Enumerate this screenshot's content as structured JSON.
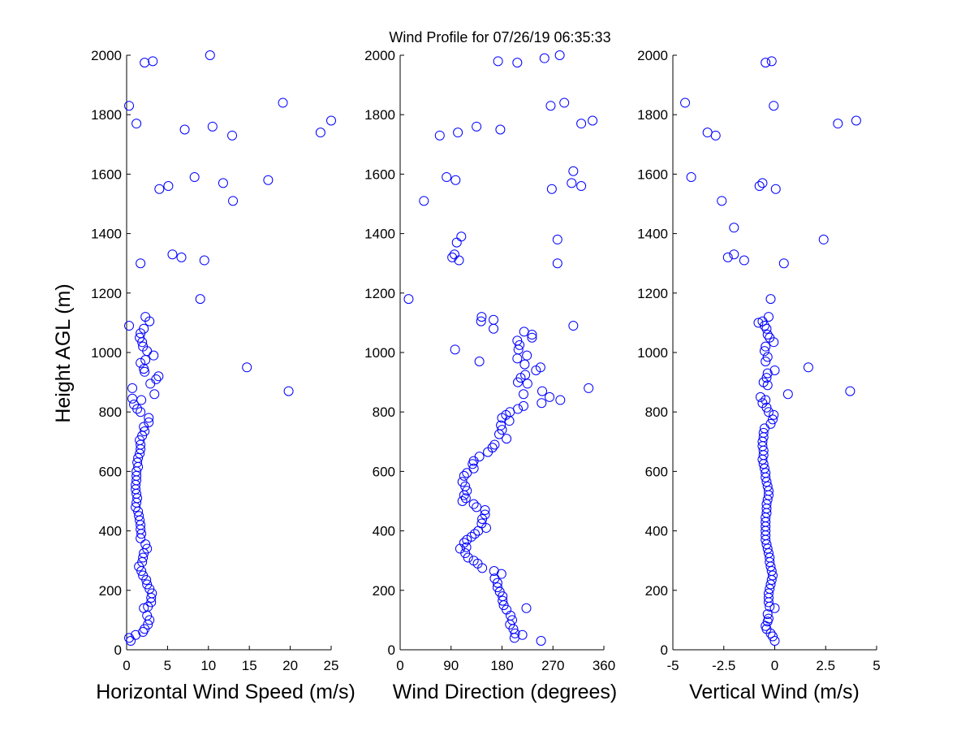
{
  "title": "Wind Profile for  07/26/19 06:35:33",
  "ylabel": "Height AGL (m)",
  "colors": {
    "marker": "#0000ff",
    "axis": "#000000",
    "background": "#ffffff"
  },
  "chart_data": [
    {
      "type": "scatter",
      "title": "Wind Profile for  07/26/19 06:35:33",
      "xlabel": "Horizontal Wind Speed (m/s)",
      "ylabel": "Height AGL (m)",
      "xlim": [
        0,
        25
      ],
      "ylim": [
        0,
        2000
      ],
      "xticks": [
        0,
        5,
        10,
        15,
        20,
        25
      ],
      "xtick_labels": [
        "0",
        "5",
        "10",
        "15",
        "20",
        "25"
      ],
      "yticks": [
        0,
        200,
        400,
        600,
        800,
        1000,
        1200,
        1400,
        1600,
        1800,
        2000
      ],
      "ytick_labels": [
        "0",
        "200",
        "400",
        "600",
        "800",
        "1000",
        "1200",
        "1400",
        "1600",
        "1800",
        "2000"
      ],
      "points": [
        [
          10.2,
          2000
        ],
        [
          3.2,
          1980
        ],
        [
          2.2,
          1975
        ],
        [
          0.3,
          1830
        ],
        [
          1.2,
          1770
        ],
        [
          19.1,
          1840
        ],
        [
          25,
          1780
        ],
        [
          23.7,
          1740
        ],
        [
          10.5,
          1760
        ],
        [
          7.1,
          1750
        ],
        [
          12.9,
          1730
        ],
        [
          8.3,
          1590
        ],
        [
          11.8,
          1570
        ],
        [
          17.3,
          1580
        ],
        [
          5.1,
          1560
        ],
        [
          4.0,
          1550
        ],
        [
          13.0,
          1510
        ],
        [
          5.6,
          1330
        ],
        [
          6.7,
          1320
        ],
        [
          9.5,
          1310
        ],
        [
          1.7,
          1300
        ],
        [
          9.0,
          1180
        ],
        [
          2.3,
          1120
        ],
        [
          2.8,
          1105
        ],
        [
          0.3,
          1090
        ],
        [
          2.1,
          1080
        ],
        [
          1.7,
          1065
        ],
        [
          1.6,
          1050
        ],
        [
          1.9,
          1035
        ],
        [
          2.0,
          1020
        ],
        [
          2.5,
          1005
        ],
        [
          3.3,
          990
        ],
        [
          2.3,
          975
        ],
        [
          1.7,
          965
        ],
        [
          2.1,
          945
        ],
        [
          2.2,
          935
        ],
        [
          14.7,
          950
        ],
        [
          3.9,
          920
        ],
        [
          3.6,
          910
        ],
        [
          2.9,
          895
        ],
        [
          0.7,
          880
        ],
        [
          19.8,
          870
        ],
        [
          3.4,
          860
        ],
        [
          0.7,
          845
        ],
        [
          1.8,
          840
        ],
        [
          0.9,
          825
        ],
        [
          1.3,
          810
        ],
        [
          1.7,
          800
        ],
        [
          2.7,
          780
        ],
        [
          2.7,
          765
        ],
        [
          2.1,
          750
        ],
        [
          2.2,
          735
        ],
        [
          1.9,
          720
        ],
        [
          1.6,
          705
        ],
        [
          1.7,
          690
        ],
        [
          1.7,
          675
        ],
        [
          1.6,
          660
        ],
        [
          1.4,
          645
        ],
        [
          1.3,
          630
        ],
        [
          1.4,
          615
        ],
        [
          1.2,
          600
        ],
        [
          1.2,
          585
        ],
        [
          1.2,
          570
        ],
        [
          1.1,
          555
        ],
        [
          1.1,
          540
        ],
        [
          1.2,
          525
        ],
        [
          1.3,
          510
        ],
        [
          1.2,
          495
        ],
        [
          1.1,
          480
        ],
        [
          1.4,
          465
        ],
        [
          1.5,
          450
        ],
        [
          1.6,
          435
        ],
        [
          1.7,
          420
        ],
        [
          1.7,
          405
        ],
        [
          1.8,
          390
        ],
        [
          1.7,
          375
        ],
        [
          2.3,
          355
        ],
        [
          2.5,
          340
        ],
        [
          2.1,
          325
        ],
        [
          2.0,
          310
        ],
        [
          1.9,
          295
        ],
        [
          1.5,
          280
        ],
        [
          1.8,
          265
        ],
        [
          2.0,
          250
        ],
        [
          2.4,
          235
        ],
        [
          2.5,
          220
        ],
        [
          2.8,
          205
        ],
        [
          3.1,
          190
        ],
        [
          3.0,
          175
        ],
        [
          3.0,
          160
        ],
        [
          2.6,
          145
        ],
        [
          2.1,
          140
        ],
        [
          2.5,
          115
        ],
        [
          2.8,
          100
        ],
        [
          2.6,
          85
        ],
        [
          2.2,
          70
        ],
        [
          2.0,
          60
        ],
        [
          1.1,
          50
        ],
        [
          0.3,
          40
        ],
        [
          0.5,
          30
        ]
      ]
    },
    {
      "type": "scatter",
      "title": "",
      "xlabel": "Wind Direction (degrees)",
      "ylabel": "",
      "xlim": [
        0,
        360
      ],
      "ylim": [
        0,
        2000
      ],
      "xticks": [
        0,
        90,
        180,
        270,
        360
      ],
      "xtick_labels": [
        "0",
        "90",
        "180",
        "270",
        "360"
      ],
      "yticks": [
        0,
        200,
        400,
        600,
        800,
        1000,
        1200,
        1400,
        1600,
        1800,
        2000
      ],
      "ytick_labels": [
        "0",
        "200",
        "400",
        "600",
        "800",
        "1000",
        "1200",
        "1400",
        "1600",
        "1800",
        "2000"
      ],
      "points": [
        [
          282,
          2000
        ],
        [
          255,
          1990
        ],
        [
          173,
          1980
        ],
        [
          207,
          1975
        ],
        [
          266,
          1830
        ],
        [
          290,
          1840
        ],
        [
          340,
          1780
        ],
        [
          320,
          1770
        ],
        [
          135,
          1760
        ],
        [
          177,
          1750
        ],
        [
          102,
          1740
        ],
        [
          70,
          1730
        ],
        [
          306,
          1610
        ],
        [
          82,
          1590
        ],
        [
          98,
          1580
        ],
        [
          303,
          1570
        ],
        [
          320,
          1560
        ],
        [
          268,
          1550
        ],
        [
          42,
          1510
        ],
        [
          108,
          1390
        ],
        [
          278,
          1380
        ],
        [
          100,
          1370
        ],
        [
          96,
          1330
        ],
        [
          92,
          1320
        ],
        [
          104,
          1310
        ],
        [
          278,
          1300
        ],
        [
          15,
          1180
        ],
        [
          144,
          1120
        ],
        [
          143,
          1105
        ],
        [
          165,
          1110
        ],
        [
          306,
          1090
        ],
        [
          165,
          1080
        ],
        [
          219,
          1070
        ],
        [
          233,
          1060
        ],
        [
          233,
          1050
        ],
        [
          207,
          1040
        ],
        [
          211,
          1025
        ],
        [
          209,
          1010
        ],
        [
          97,
          1010
        ],
        [
          224,
          990
        ],
        [
          207,
          980
        ],
        [
          140,
          970
        ],
        [
          220,
          960
        ],
        [
          248,
          950
        ],
        [
          240,
          940
        ],
        [
          221,
          925
        ],
        [
          213,
          915
        ],
        [
          208,
          900
        ],
        [
          225,
          895
        ],
        [
          333,
          880
        ],
        [
          251,
          870
        ],
        [
          218,
          860
        ],
        [
          264,
          850
        ],
        [
          283,
          840
        ],
        [
          250,
          830
        ],
        [
          218,
          820
        ],
        [
          208,
          810
        ],
        [
          194,
          800
        ],
        [
          187,
          790
        ],
        [
          180,
          780
        ],
        [
          193,
          770
        ],
        [
          178,
          755
        ],
        [
          180,
          740
        ],
        [
          175,
          725
        ],
        [
          188,
          710
        ],
        [
          167,
          690
        ],
        [
          163,
          680
        ],
        [
          155,
          665
        ],
        [
          140,
          650
        ],
        [
          130,
          635
        ],
        [
          128,
          625
        ],
        [
          130,
          610
        ],
        [
          118,
          595
        ],
        [
          113,
          585
        ],
        [
          110,
          565
        ],
        [
          115,
          550
        ],
        [
          118,
          535
        ],
        [
          113,
          520
        ],
        [
          116,
          510
        ],
        [
          110,
          500
        ],
        [
          130,
          490
        ],
        [
          135,
          480
        ],
        [
          150,
          470
        ],
        [
          150,
          455
        ],
        [
          145,
          440
        ],
        [
          144,
          425
        ],
        [
          152,
          410
        ],
        [
          138,
          400
        ],
        [
          132,
          390
        ],
        [
          126,
          380
        ],
        [
          118,
          370
        ],
        [
          113,
          360
        ],
        [
          117,
          345
        ],
        [
          106,
          340
        ],
        [
          115,
          325
        ],
        [
          120,
          310
        ],
        [
          130,
          300
        ],
        [
          137,
          290
        ],
        [
          145,
          275
        ],
        [
          166,
          265
        ],
        [
          179,
          255
        ],
        [
          167,
          240
        ],
        [
          172,
          225
        ],
        [
          172,
          210
        ],
        [
          176,
          195
        ],
        [
          181,
          180
        ],
        [
          181,
          165
        ],
        [
          183,
          150
        ],
        [
          188,
          135
        ],
        [
          223,
          140
        ],
        [
          195,
          115
        ],
        [
          198,
          100
        ],
        [
          194,
          85
        ],
        [
          200,
          70
        ],
        [
          203,
          55
        ],
        [
          216,
          50
        ],
        [
          202,
          40
        ],
        [
          249,
          30
        ]
      ]
    },
    {
      "type": "scatter",
      "title": "",
      "xlabel": "Vertical Wind (m/s)",
      "ylabel": "",
      "xlim": [
        -5,
        5
      ],
      "ylim": [
        0,
        2000
      ],
      "xticks": [
        -5,
        -2.5,
        0,
        2.5,
        5
      ],
      "xtick_labels": [
        "-5",
        "-2.5",
        "0",
        "2.5",
        "5"
      ],
      "yticks": [
        0,
        200,
        400,
        600,
        800,
        1000,
        1200,
        1400,
        1600,
        1800,
        2000
      ],
      "ytick_labels": [
        "0",
        "200",
        "400",
        "600",
        "800",
        "1000",
        "1200",
        "1400",
        "1600",
        "1800",
        "2000"
      ],
      "points": [
        [
          -0.15,
          1980
        ],
        [
          -0.45,
          1975
        ],
        [
          -4.4,
          1840
        ],
        [
          -0.05,
          1830
        ],
        [
          4.0,
          1780
        ],
        [
          3.1,
          1770
        ],
        [
          -3.3,
          1740
        ],
        [
          -2.9,
          1730
        ],
        [
          -4.1,
          1590
        ],
        [
          -0.6,
          1570
        ],
        [
          -0.75,
          1560
        ],
        [
          0.05,
          1550
        ],
        [
          -2.6,
          1510
        ],
        [
          -2.0,
          1420
        ],
        [
          2.4,
          1380
        ],
        [
          -2.3,
          1320
        ],
        [
          -2.0,
          1330
        ],
        [
          -1.5,
          1310
        ],
        [
          0.45,
          1300
        ],
        [
          -0.2,
          1180
        ],
        [
          -0.3,
          1120
        ],
        [
          -0.8,
          1100
        ],
        [
          -0.6,
          1105
        ],
        [
          -0.5,
          1090
        ],
        [
          -0.4,
          1080
        ],
        [
          -0.35,
          1060
        ],
        [
          -0.25,
          1050
        ],
        [
          -0.05,
          1035
        ],
        [
          -0.45,
          1020
        ],
        [
          -0.5,
          1005
        ],
        [
          -0.35,
          985
        ],
        [
          -0.45,
          970
        ],
        [
          0.0,
          940
        ],
        [
          -0.35,
          930
        ],
        [
          -0.4,
          915
        ],
        [
          -0.55,
          900
        ],
        [
          -0.35,
          890
        ],
        [
          3.7,
          870
        ],
        [
          1.65,
          950
        ],
        [
          0.65,
          860
        ],
        [
          -0.7,
          850
        ],
        [
          -0.45,
          840
        ],
        [
          -0.6,
          830
        ],
        [
          -0.4,
          815
        ],
        [
          -0.3,
          800
        ],
        [
          -0.05,
          790
        ],
        [
          -0.1,
          775
        ],
        [
          -0.2,
          760
        ],
        [
          -0.5,
          745
        ],
        [
          -0.55,
          730
        ],
        [
          -0.55,
          715
        ],
        [
          -0.6,
          700
        ],
        [
          -0.6,
          685
        ],
        [
          -0.55,
          670
        ],
        [
          -0.55,
          655
        ],
        [
          -0.6,
          640
        ],
        [
          -0.55,
          625
        ],
        [
          -0.5,
          610
        ],
        [
          -0.45,
          595
        ],
        [
          -0.45,
          580
        ],
        [
          -0.4,
          565
        ],
        [
          -0.35,
          550
        ],
        [
          -0.3,
          535
        ],
        [
          -0.3,
          520
        ],
        [
          -0.35,
          505
        ],
        [
          -0.4,
          490
        ],
        [
          -0.4,
          475
        ],
        [
          -0.4,
          460
        ],
        [
          -0.45,
          445
        ],
        [
          -0.45,
          430
        ],
        [
          -0.45,
          415
        ],
        [
          -0.45,
          400
        ],
        [
          -0.45,
          385
        ],
        [
          -0.45,
          370
        ],
        [
          -0.4,
          355
        ],
        [
          -0.35,
          340
        ],
        [
          -0.3,
          325
        ],
        [
          -0.25,
          310
        ],
        [
          -0.25,
          295
        ],
        [
          -0.2,
          280
        ],
        [
          -0.15,
          265
        ],
        [
          -0.1,
          250
        ],
        [
          -0.15,
          235
        ],
        [
          -0.2,
          220
        ],
        [
          -0.25,
          205
        ],
        [
          -0.3,
          190
        ],
        [
          -0.3,
          175
        ],
        [
          -0.3,
          160
        ],
        [
          -0.25,
          145
        ],
        [
          0.0,
          140
        ],
        [
          -0.35,
          120
        ],
        [
          -0.3,
          105
        ],
        [
          -0.35,
          95
        ],
        [
          -0.45,
          80
        ],
        [
          -0.4,
          70
        ],
        [
          -0.2,
          55
        ],
        [
          -0.1,
          45
        ],
        [
          0.0,
          30
        ]
      ]
    }
  ]
}
